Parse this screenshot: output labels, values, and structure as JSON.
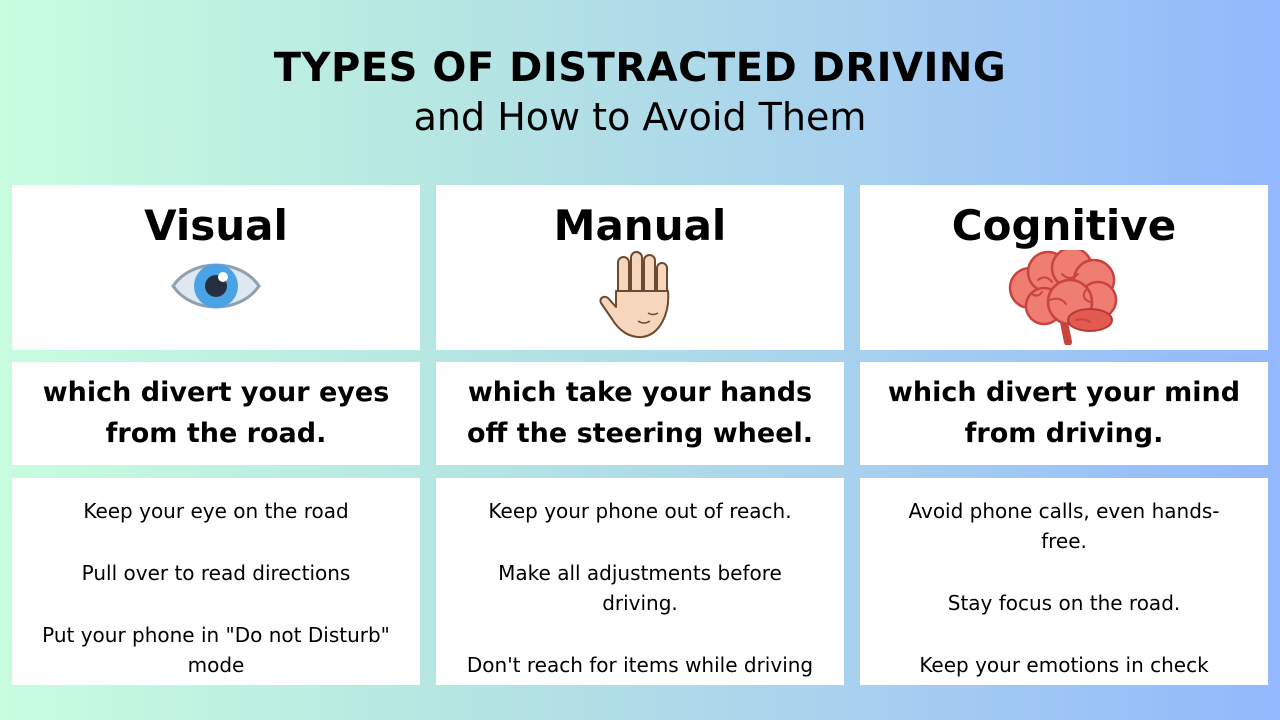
{
  "header": {
    "title": "TYPES OF DISTRACTED DRIVING",
    "subtitle": "and How to Avoid Them"
  },
  "categories": [
    {
      "title": "Visual",
      "icon": "eye-icon",
      "description": "which divert your eyes from the road.",
      "tips": [
        "Keep your eye on the road",
        "Pull over to read directions",
        "Put your phone in \"Do not Disturb\" mode"
      ]
    },
    {
      "title": "Manual",
      "icon": "hand-icon",
      "description": "which take your hands off the steering wheel.",
      "tips": [
        "Keep your phone out of reach.",
        "Make all adjustments before driving.",
        "Don't reach for items while driving"
      ]
    },
    {
      "title": "Cognitive",
      "icon": "brain-icon",
      "description": "which divert your mind from driving.",
      "tips": [
        "Avoid phone calls, even hands-free.",
        "Stay focus on the road.",
        "Keep your emotions in check"
      ]
    }
  ],
  "colors": {
    "gradient_left": "#c9fde0",
    "gradient_right": "#93b8fd",
    "card": "#ffffff"
  }
}
